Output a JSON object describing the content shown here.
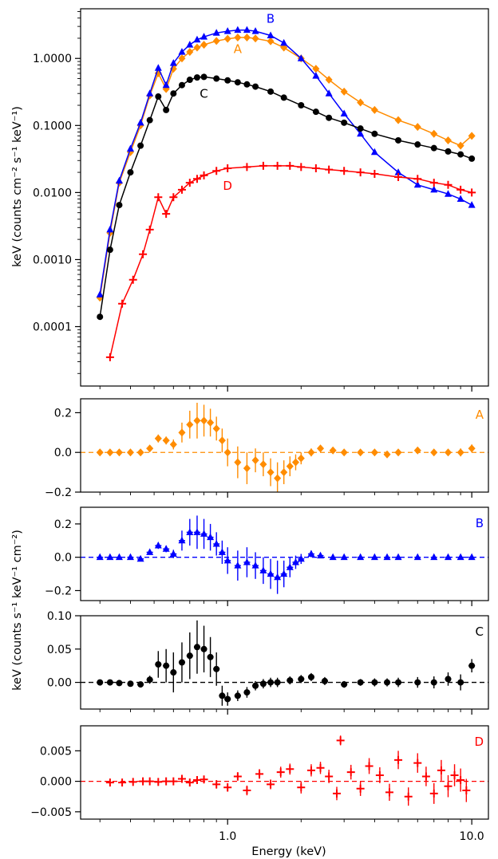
{
  "figure": {
    "xlabel": "Energy (keV)",
    "ylabel_top": "keV (counts cm⁻² s⁻¹ keV⁻¹)",
    "ylabel_residual": "keV (counts s⁻¹ keV⁻¹ cm⁻²)"
  },
  "chart_data": [
    {
      "type": "line",
      "title": "",
      "xlabel": "",
      "ylabel": "keV (counts cm⁻² s⁻¹ keV⁻¹)",
      "xscale": "log",
      "yscale": "log",
      "xlim": [
        0.25,
        11.7
      ],
      "ylim": [
        1.3e-05,
        5.5
      ],
      "xticks": [
        1.0,
        10.0
      ],
      "xtick_labels": [],
      "yticks": [
        0.0001,
        0.001,
        0.01,
        0.1,
        1.0
      ],
      "ytick_labels": [
        "0.0001",
        "0.0010",
        "0.0100",
        "0.1000",
        "1.0000"
      ],
      "grid": false,
      "series": [
        {
          "name": "A",
          "color": "#ff8c00",
          "marker": "diamond",
          "x": [
            0.3,
            0.33,
            0.36,
            0.4,
            0.44,
            0.48,
            0.52,
            0.56,
            0.6,
            0.65,
            0.7,
            0.75,
            0.8,
            0.9,
            1.0,
            1.1,
            1.2,
            1.3,
            1.5,
            1.7,
            2.0,
            2.3,
            2.6,
            3.0,
            3.5,
            4.0,
            5.0,
            6.0,
            7.0,
            8.0,
            9.0,
            10.0
          ],
          "y": [
            0.00027,
            0.0025,
            0.014,
            0.04,
            0.1,
            0.28,
            0.6,
            0.35,
            0.7,
            1.0,
            1.25,
            1.45,
            1.6,
            1.82,
            1.96,
            2.05,
            2.05,
            1.98,
            1.8,
            1.45,
            1.0,
            0.7,
            0.48,
            0.32,
            0.22,
            0.17,
            0.12,
            0.095,
            0.075,
            0.06,
            0.05,
            0.07
          ]
        },
        {
          "name": "B",
          "color": "#0000ff",
          "marker": "triangle",
          "x": [
            0.3,
            0.33,
            0.36,
            0.4,
            0.44,
            0.48,
            0.52,
            0.56,
            0.6,
            0.65,
            0.7,
            0.75,
            0.8,
            0.9,
            1.0,
            1.1,
            1.2,
            1.3,
            1.5,
            1.7,
            2.0,
            2.3,
            2.6,
            3.0,
            3.5,
            4.0,
            5.0,
            6.0,
            7.0,
            8.0,
            9.0,
            10.0
          ],
          "y": [
            0.0003,
            0.0028,
            0.015,
            0.045,
            0.11,
            0.3,
            0.72,
            0.4,
            0.85,
            1.25,
            1.6,
            1.9,
            2.1,
            2.4,
            2.55,
            2.65,
            2.65,
            2.55,
            2.2,
            1.7,
            1.0,
            0.55,
            0.3,
            0.15,
            0.075,
            0.04,
            0.02,
            0.013,
            0.011,
            0.0095,
            0.008,
            0.0065
          ]
        },
        {
          "name": "C",
          "color": "#000000",
          "marker": "circle",
          "x": [
            0.3,
            0.33,
            0.36,
            0.4,
            0.44,
            0.48,
            0.52,
            0.56,
            0.6,
            0.65,
            0.7,
            0.75,
            0.8,
            0.9,
            1.0,
            1.1,
            1.2,
            1.3,
            1.5,
            1.7,
            2.0,
            2.3,
            2.6,
            3.0,
            3.5,
            4.0,
            5.0,
            6.0,
            7.0,
            8.0,
            9.0,
            10.0
          ],
          "y": [
            0.00014,
            0.0014,
            0.0065,
            0.02,
            0.05,
            0.12,
            0.27,
            0.17,
            0.3,
            0.4,
            0.48,
            0.52,
            0.53,
            0.5,
            0.47,
            0.44,
            0.41,
            0.38,
            0.32,
            0.26,
            0.2,
            0.16,
            0.13,
            0.11,
            0.09,
            0.075,
            0.06,
            0.052,
            0.046,
            0.041,
            0.037,
            0.032
          ]
        },
        {
          "name": "D",
          "color": "#ff0000",
          "marker": "plus",
          "x": [
            0.33,
            0.37,
            0.41,
            0.45,
            0.48,
            0.52,
            0.56,
            0.6,
            0.65,
            0.7,
            0.75,
            0.8,
            0.9,
            1.0,
            1.2,
            1.4,
            1.6,
            1.8,
            2.0,
            2.3,
            2.6,
            3.0,
            3.5,
            4.0,
            5.0,
            6.0,
            7.0,
            8.0,
            9.0,
            10.0
          ],
          "y": [
            3.5e-05,
            0.00022,
            0.0005,
            0.0012,
            0.0028,
            0.0085,
            0.0048,
            0.0085,
            0.011,
            0.014,
            0.016,
            0.018,
            0.021,
            0.023,
            0.024,
            0.025,
            0.025,
            0.025,
            0.024,
            0.023,
            0.022,
            0.021,
            0.02,
            0.019,
            0.017,
            0.016,
            0.014,
            0.013,
            0.011,
            0.01
          ]
        }
      ],
      "annotations": [
        {
          "text": "B",
          "x": 1.5,
          "y": 3.4,
          "color": "#0000ff"
        },
        {
          "text": "A",
          "x": 1.1,
          "y": 1.2,
          "color": "#ff8c00"
        },
        {
          "text": "C",
          "x": 0.8,
          "y": 0.26,
          "color": "#000000"
        },
        {
          "text": "D",
          "x": 1.0,
          "y": 0.011,
          "color": "#ff0000"
        }
      ]
    },
    {
      "type": "scatter",
      "panel_label": "A",
      "label_color": "#ff8c00",
      "xscale": "log",
      "xlim": [
        0.25,
        11.7
      ],
      "ylim": [
        -0.2,
        0.27
      ],
      "yticks": [
        -0.2,
        0.0,
        0.2
      ],
      "ytick_labels": [
        "−0.2",
        "0.0",
        "0.2"
      ],
      "reference_line": 0.0,
      "series": [
        {
          "name": "",
          "color": "#ff8c00",
          "marker": "diamond",
          "x": [
            0.3,
            0.33,
            0.36,
            0.4,
            0.44,
            0.48,
            0.52,
            0.56,
            0.6,
            0.65,
            0.7,
            0.75,
            0.8,
            0.85,
            0.9,
            0.95,
            1.0,
            1.1,
            1.2,
            1.3,
            1.4,
            1.5,
            1.6,
            1.7,
            1.8,
            1.9,
            2.0,
            2.2,
            2.4,
            2.7,
            3.0,
            3.5,
            4.0,
            4.5,
            5.0,
            6.0,
            7.0,
            8.0,
            9.0,
            10.0
          ],
          "y": [
            0.0,
            0.0,
            0.0,
            0.0,
            0.0,
            0.02,
            0.07,
            0.06,
            0.04,
            0.1,
            0.14,
            0.16,
            0.16,
            0.15,
            0.12,
            0.06,
            0.0,
            -0.05,
            -0.08,
            -0.04,
            -0.06,
            -0.1,
            -0.13,
            -0.1,
            -0.07,
            -0.05,
            -0.03,
            0.0,
            0.02,
            0.01,
            0.0,
            0.0,
            0.0,
            -0.01,
            0.0,
            0.01,
            0.0,
            0.0,
            0.0,
            0.02
          ],
          "err": [
            0.005,
            0.005,
            0.006,
            0.007,
            0.008,
            0.01,
            0.02,
            0.02,
            0.025,
            0.05,
            0.07,
            0.09,
            0.08,
            0.07,
            0.06,
            0.06,
            0.07,
            0.08,
            0.08,
            0.06,
            0.06,
            0.07,
            0.08,
            0.06,
            0.05,
            0.04,
            0.03,
            0.02,
            0.015,
            0.012,
            0.01,
            0.01,
            0.01,
            0.01,
            0.012,
            0.012,
            0.015,
            0.015,
            0.02,
            0.02
          ]
        }
      ]
    },
    {
      "type": "scatter",
      "panel_label": "B",
      "label_color": "#0000ff",
      "xscale": "log",
      "xlim": [
        0.25,
        11.7
      ],
      "ylim": [
        -0.26,
        0.3
      ],
      "yticks": [
        -0.2,
        0.0,
        0.2
      ],
      "ytick_labels": [
        "−0.2",
        "0.0",
        "0.2"
      ],
      "reference_line": 0.0,
      "series": [
        {
          "name": "",
          "color": "#0000ff",
          "marker": "triangle",
          "x": [
            0.3,
            0.33,
            0.36,
            0.4,
            0.44,
            0.48,
            0.52,
            0.56,
            0.6,
            0.65,
            0.7,
            0.75,
            0.8,
            0.85,
            0.9,
            0.95,
            1.0,
            1.1,
            1.2,
            1.3,
            1.4,
            1.5,
            1.6,
            1.7,
            1.8,
            1.9,
            2.0,
            2.2,
            2.4,
            2.7,
            3.0,
            3.5,
            4.0,
            4.5,
            5.0,
            6.0,
            7.0,
            8.0,
            9.0,
            10.0
          ],
          "y": [
            0.0,
            0.0,
            0.0,
            0.0,
            -0.01,
            0.03,
            0.07,
            0.05,
            0.02,
            0.1,
            0.15,
            0.15,
            0.14,
            0.12,
            0.08,
            0.03,
            -0.02,
            -0.05,
            -0.03,
            -0.05,
            -0.08,
            -0.1,
            -0.12,
            -0.1,
            -0.06,
            -0.03,
            -0.01,
            0.02,
            0.01,
            0.0,
            0.0,
            0.0,
            0.0,
            0.0,
            0.0,
            0.0,
            0.0,
            0.0,
            0.0,
            0.0
          ],
          "err": [
            0.004,
            0.004,
            0.005,
            0.006,
            0.007,
            0.01,
            0.02,
            0.02,
            0.025,
            0.06,
            0.08,
            0.1,
            0.09,
            0.08,
            0.07,
            0.07,
            0.08,
            0.09,
            0.09,
            0.08,
            0.08,
            0.09,
            0.1,
            0.08,
            0.06,
            0.04,
            0.03,
            0.02,
            0.015,
            0.01,
            0.008,
            0.006,
            0.006,
            0.006,
            0.006,
            0.006,
            0.006,
            0.006,
            0.006,
            0.006
          ]
        }
      ]
    },
    {
      "type": "scatter",
      "panel_label": "C",
      "label_color": "#000000",
      "xscale": "log",
      "xlim": [
        0.25,
        11.7
      ],
      "ylim": [
        -0.04,
        0.1
      ],
      "yticks": [
        0.0,
        0.05,
        0.1
      ],
      "ytick_labels": [
        "0.00",
        "0.05",
        "0.10"
      ],
      "reference_line": 0.0,
      "series": [
        {
          "name": "",
          "color": "#000000",
          "marker": "circle",
          "x": [
            0.3,
            0.33,
            0.36,
            0.4,
            0.44,
            0.48,
            0.52,
            0.56,
            0.6,
            0.65,
            0.7,
            0.75,
            0.8,
            0.85,
            0.9,
            0.95,
            1.0,
            1.1,
            1.2,
            1.3,
            1.4,
            1.5,
            1.6,
            1.8,
            2.0,
            2.2,
            2.5,
            3.0,
            3.5,
            4.0,
            4.5,
            5.0,
            6.0,
            7.0,
            8.0,
            9.0,
            10.0
          ],
          "y": [
            0.0,
            0.0,
            -0.001,
            -0.002,
            -0.003,
            0.004,
            0.027,
            0.025,
            0.015,
            0.03,
            0.04,
            0.053,
            0.05,
            0.038,
            0.02,
            -0.02,
            -0.025,
            -0.02,
            -0.015,
            -0.005,
            -0.002,
            0.0,
            0.0,
            0.003,
            0.005,
            0.008,
            0.002,
            -0.003,
            0.0,
            0.0,
            0.0,
            0.0,
            0.0,
            0.0,
            0.005,
            0.0,
            0.025
          ],
          "err": [
            0.002,
            0.002,
            0.002,
            0.003,
            0.004,
            0.006,
            0.02,
            0.025,
            0.03,
            0.03,
            0.035,
            0.04,
            0.035,
            0.03,
            0.025,
            0.015,
            0.01,
            0.008,
            0.008,
            0.007,
            0.007,
            0.007,
            0.007,
            0.006,
            0.006,
            0.006,
            0.006,
            0.005,
            0.005,
            0.006,
            0.006,
            0.007,
            0.008,
            0.009,
            0.01,
            0.012,
            0.01
          ]
        }
      ]
    },
    {
      "type": "scatter",
      "panel_label": "D",
      "label_color": "#ff0000",
      "xscale": "log",
      "xlim": [
        0.25,
        11.7
      ],
      "ylim": [
        -0.0062,
        0.0091
      ],
      "yticks": [
        -0.005,
        0.0,
        0.005
      ],
      "ytick_labels": [
        "−0.005",
        "0.000",
        "0.005"
      ],
      "reference_line": 0.0,
      "series": [
        {
          "name": "",
          "color": "#ff0000",
          "marker": "plus",
          "x": [
            0.33,
            0.37,
            0.41,
            0.45,
            0.48,
            0.52,
            0.56,
            0.6,
            0.65,
            0.7,
            0.75,
            0.8,
            0.9,
            1.0,
            1.1,
            1.2,
            1.35,
            1.5,
            1.65,
            1.8,
            2.0,
            2.2,
            2.4,
            2.6,
            2.8,
            2.9,
            3.2,
            3.5,
            3.8,
            4.2,
            4.6,
            5.0,
            5.5,
            6.0,
            6.5,
            7.0,
            7.5,
            8.0,
            8.5,
            9.0,
            9.5
          ],
          "y": [
            -0.0002,
            -0.0002,
            -0.0001,
            0.0,
            0.0,
            -0.0001,
            0.0,
            0.0,
            0.0004,
            -0.0002,
            0.0002,
            0.0003,
            -0.0005,
            -0.001,
            0.0008,
            -0.0015,
            0.0012,
            -0.0005,
            0.0015,
            0.002,
            -0.001,
            0.0018,
            0.0022,
            0.0008,
            -0.002,
            0.0067,
            0.0015,
            -0.0012,
            0.0025,
            0.001,
            -0.0018,
            0.0035,
            -0.0025,
            0.003,
            0.0008,
            -0.002,
            0.0018,
            -0.0008,
            0.001,
            0.0002,
            -0.0015
          ],
          "err": [
            0.0001,
            0.0001,
            0.0002,
            0.0002,
            0.0002,
            0.0002,
            0.0003,
            0.0003,
            0.0004,
            0.0004,
            0.0005,
            0.0005,
            0.0007,
            0.0007,
            0.0007,
            0.0008,
            0.0008,
            0.0008,
            0.0009,
            0.0009,
            0.001,
            0.001,
            0.001,
            0.0011,
            0.0011,
            0.0008,
            0.0012,
            0.0012,
            0.0013,
            0.0013,
            0.0014,
            0.0015,
            0.0015,
            0.0016,
            0.0016,
            0.0017,
            0.0017,
            0.0018,
            0.0018,
            0.0019,
            0.0019
          ]
        }
      ]
    }
  ]
}
